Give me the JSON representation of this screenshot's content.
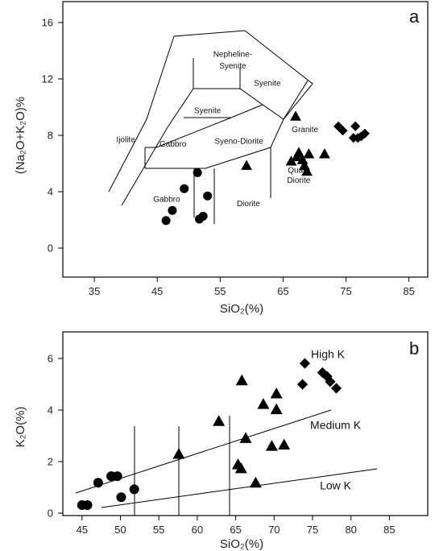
{
  "chart_data": [
    {
      "type": "scatter",
      "panel_label": "a",
      "xlabel": "SiO₂(%)",
      "ylabel": "(Na₂O+K₂O)%",
      "xlim": [
        30,
        88
      ],
      "ylim": [
        -1.5,
        17.5
      ],
      "xticks": [
        35,
        45,
        55,
        65,
        75,
        85
      ],
      "yticks": [
        0,
        4,
        8,
        12,
        16
      ],
      "grid": false,
      "field_labels": [
        {
          "text": "Nepheline-",
          "x": 57,
          "y": 13.7
        },
        {
          "text": "Syenite",
          "x": 57,
          "y": 12.9
        },
        {
          "text": "Syenite",
          "x": 62.5,
          "y": 11.7
        },
        {
          "text": "Syenite",
          "x": 53,
          "y": 9.8
        },
        {
          "text": "Syeno-Diorite",
          "x": 58,
          "y": 7.7
        },
        {
          "text": "Ijolite",
          "x": 40,
          "y": 7.8
        },
        {
          "text": "Gabbro",
          "x": 47.5,
          "y": 7.5
        },
        {
          "text": "Gabbro",
          "x": 46.5,
          "y": 3.7
        },
        {
          "text": "Diorite",
          "x": 59.5,
          "y": 3.4
        },
        {
          "text": "Granite",
          "x": 68.5,
          "y": 8.5
        },
        {
          "text": "Quarz",
          "x": 67.5,
          "y": 5.7
        },
        {
          "text": "Diorite",
          "x": 67.5,
          "y": 5.0
        }
      ],
      "series": [
        {
          "marker": "circle",
          "points": [
            [
              46.4,
              2.4
            ],
            [
              47.4,
              3.1
            ],
            [
              49.3,
              4.6
            ],
            [
              51.4,
              5.7
            ],
            [
              51.7,
              2.5
            ],
            [
              52.3,
              2.7
            ],
            [
              53.0,
              4.1
            ]
          ]
        },
        {
          "marker": "triangle",
          "points": [
            [
              59.2,
              6.2
            ],
            [
              66.3,
              6.5
            ],
            [
              67.0,
              9.6
            ],
            [
              67.2,
              6.8
            ],
            [
              67.5,
              7.1
            ],
            [
              68.1,
              6.6
            ],
            [
              68.4,
              6.2
            ],
            [
              68.8,
              5.8
            ],
            [
              69.1,
              7.0
            ],
            [
              71.6,
              7.0
            ]
          ]
        },
        {
          "marker": "diamond",
          "points": [
            [
              73.8,
              8.9
            ],
            [
              74.5,
              8.6
            ],
            [
              76.2,
              8.1
            ],
            [
              76.5,
              8.9
            ],
            [
              76.9,
              8.1
            ],
            [
              77.4,
              8.2
            ],
            [
              78.0,
              8.4
            ]
          ]
        }
      ]
    },
    {
      "type": "scatter",
      "panel_label": "b",
      "xlabel": "SiO₂(%)",
      "ylabel": "K₂O(%)",
      "xlim": [
        42.5,
        90
      ],
      "ylim": [
        -0.1,
        6.9
      ],
      "xticks": [
        45,
        50,
        55,
        60,
        65,
        70,
        75,
        80,
        85
      ],
      "yticks": [
        0,
        2,
        4,
        6
      ],
      "grid": false,
      "series_labels": [
        {
          "text": "High K",
          "x": 77,
          "y": 5.9
        },
        {
          "text": "Medium K",
          "x": 78,
          "y": 3.2
        },
        {
          "text": "Low K",
          "x": 78,
          "y": 0.9
        }
      ],
      "series": [
        {
          "marker": "circle",
          "points": [
            [
              45.0,
              0.3
            ],
            [
              45.7,
              0.3
            ],
            [
              47.1,
              1.15
            ],
            [
              48.8,
              1.4
            ],
            [
              49.6,
              1.4
            ],
            [
              50.1,
              0.6
            ],
            [
              51.8,
              0.9
            ]
          ]
        },
        {
          "marker": "triangle",
          "points": [
            [
              57.6,
              2.25
            ],
            [
              62.8,
              3.5
            ],
            [
              65.3,
              1.85
            ],
            [
              65.7,
              1.7
            ],
            [
              65.8,
              5.05
            ],
            [
              66.3,
              2.85
            ],
            [
              67.6,
              1.15
            ],
            [
              68.6,
              4.15
            ],
            [
              69.7,
              2.55
            ],
            [
              70.3,
              4.55
            ],
            [
              70.3,
              3.95
            ],
            [
              71.3,
              2.6
            ]
          ]
        },
        {
          "marker": "diamond",
          "points": [
            [
              73.7,
              4.9
            ],
            [
              74.0,
              5.7
            ],
            [
              76.3,
              5.35
            ],
            [
              76.9,
              5.2
            ],
            [
              77.3,
              5.0
            ],
            [
              78.1,
              4.75
            ]
          ]
        }
      ]
    }
  ]
}
